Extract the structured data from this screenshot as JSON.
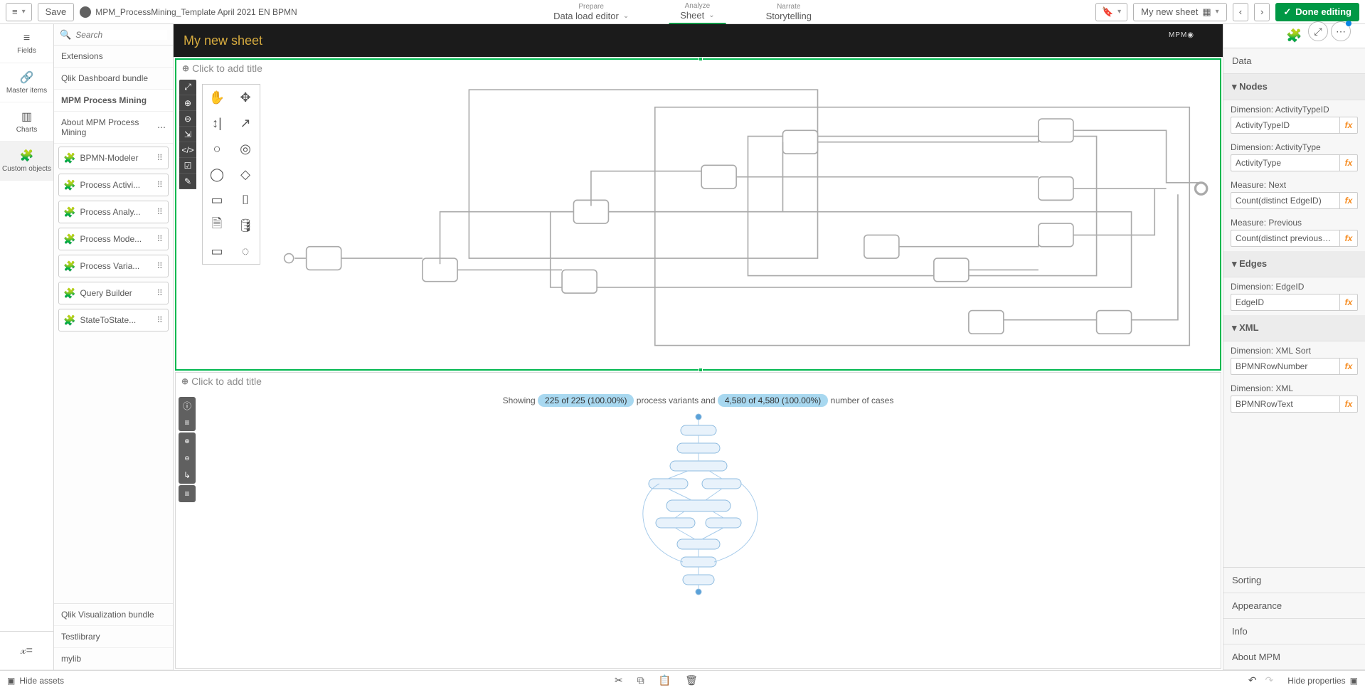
{
  "topbar": {
    "save_label": "Save",
    "app_title": "MPM_ProcessMining_Template April 2021 EN BPMN",
    "modes": [
      {
        "super": "Prepare",
        "name": "Data load editor",
        "dropdown": true
      },
      {
        "super": "Analyze",
        "name": "Sheet",
        "dropdown": true,
        "active": true
      },
      {
        "super": "Narrate",
        "name": "Storytelling",
        "dropdown": false
      }
    ],
    "sheet_selector_label": "My new sheet",
    "done_label": "Done editing"
  },
  "rail": [
    {
      "icon": "≡",
      "label": "Fields"
    },
    {
      "icon": "🔗",
      "label": "Master items"
    },
    {
      "icon": "▥",
      "label": "Charts"
    },
    {
      "icon": "🧩",
      "label": "Custom objects",
      "active": true
    }
  ],
  "assets": {
    "search_placeholder": "Search",
    "sections_top": [
      "Extensions",
      "Qlik Dashboard bundle"
    ],
    "active_section": "MPM Process Mining",
    "subtitle": "About MPM Process Mining",
    "items": [
      "BPMN-Modeler",
      "Process Activi...",
      "Process Analy...",
      "Process Mode...",
      "Process Varia...",
      "Query Builder",
      "StateToState..."
    ],
    "sections_bottom": [
      "Qlik Visualization bundle",
      "Testlibrary",
      "mylib"
    ]
  },
  "sheet": {
    "title": "My new sheet",
    "placeholder_title": "Click to add title"
  },
  "bpmn_palette": {
    "side_tools": [
      "⤢",
      "⊕",
      "⊖",
      "⇲",
      "</>",
      "☑",
      "✎"
    ],
    "shapes": [
      "✋",
      "✥",
      "↕|",
      "↗",
      "○",
      "◎",
      "◯",
      "◇",
      "▭",
      "⌷",
      "🗎",
      "🛢",
      "▭",
      "◌"
    ]
  },
  "pv": {
    "showing_prefix": "Showing",
    "variants_stat": "225 of 225 (100.00%)",
    "variants_suffix": "process variants and",
    "cases_stat": "4,580 of 4,580 (100.00%)",
    "cases_suffix": "number of cases"
  },
  "props": {
    "tabs": [
      {
        "label": "Data",
        "open": true
      },
      {
        "label": "Sorting"
      },
      {
        "label": "Appearance"
      },
      {
        "label": "Info"
      },
      {
        "label": "About MPM"
      }
    ],
    "groups": [
      {
        "name": "Nodes",
        "fields": [
          {
            "label": "Dimension: ActivityTypeID",
            "value": "ActivityTypeID"
          },
          {
            "label": "Dimension: ActivityType",
            "value": "ActivityType"
          },
          {
            "label": "Measure: Next",
            "value": "Count(distinct EdgeID)"
          },
          {
            "label": "Measure: Previous",
            "value": "Count(distinct previousActivityT"
          }
        ]
      },
      {
        "name": "Edges",
        "fields": [
          {
            "label": "Dimension: EdgeID",
            "value": "EdgeID"
          }
        ]
      },
      {
        "name": "XML",
        "fields": [
          {
            "label": "Dimension: XML Sort",
            "value": "BPMNRowNumber"
          },
          {
            "label": "Dimension: XML",
            "value": "BPMNRowText"
          }
        ]
      }
    ]
  },
  "statusbar": {
    "hide_assets": "Hide assets",
    "hide_props": "Hide properties"
  },
  "bpmn_diagram_svg": "<svg viewBox='0 0 800 280' xmlns='http://www.w3.org/2000/svg'><g stroke='#aaa' fill='none' stroke-width='1'><rect x='160' y='5' width='300' height='145'/><rect x='320' y='20' width='460' height='205'/><rect x='230' y='110' width='500' height='65'/><rect x='400' y='45' width='300' height='120'/><rect x='20' y='140' width='30' height='20' rx='3' fill='#fff'/><rect x='120' y='150' width='30' height='20' rx='3' fill='#fff'/><rect x='250' y='100' width='30' height='20' rx='3' fill='#fff'/><rect x='240' y='160' width='30' height='20' rx='3' fill='#fff'/><rect x='360' y='70' width='30' height='20' rx='3' fill='#fff'/><rect x='430' y='40' width='30' height='20' rx='3' fill='#fff'/><rect x='500' y='130' width='30' height='20' rx='3' fill='#fff'/><rect x='560' y='150' width='30' height='20' rx='3' fill='#fff'/><rect x='590' y='195' width='30' height='20' rx='3' fill='#fff'/><rect x='650' y='30' width='30' height='20' rx='3' fill='#fff'/><rect x='650' y='80' width='30' height='20' rx='3' fill='#fff'/><rect x='650' y='120' width='30' height='20' rx='3' fill='#fff'/><rect x='700' y='195' width='30' height='20' rx='3' fill='#fff'/><circle cx='5' cy='150' r='4'/><circle cx='790' cy='90' r='5' stroke-width='2'/><path d='M10 150 H20 M50 150 H120 M150 160 H240 M135 155 V110 H250 M280 110 H430 V50 M265 105 V75 H360 M390 80 H650 M460 50 H650 V40 M530 140 H650 V130 M590 160 H650 M620 203 H700 M680 40 H760 V85 H790 M680 90 H760 M680 130 H750 V90 M730 203 H770 V95'/></g></svg>",
  "pv_diagram_svg": "<svg viewBox='0 0 200 260' xmlns='http://www.w3.org/2000/svg'><g stroke='#8fbce0' fill='#e8f2fb' stroke-width='1'><circle cx='100' cy='8' r='4' fill='#5aa1d8'/><rect x='75' y='20' width='50' height='14' rx='7'/><rect x='70' y='45' width='60' height='14' rx='7'/><rect x='60' y='70' width='80' height='14' rx='7'/><rect x='30' y='95' width='55' height='14' rx='7'/><rect x='105' y='95' width='55' height='14' rx='7'/><rect x='55' y='125' width='90' height='16' rx='8'/><rect x='40' y='150' width='55' height='14' rx='7'/><rect x='110' y='150' width='50' height='14' rx='7'/><rect x='70' y='180' width='60' height='14' rx='7'/><rect x='75' y='205' width='50' height='14' rx='7'/><rect x='78' y='230' width='44' height='14' rx='7'/><circle cx='100' cy='254' r='4' fill='#5aa1d8'/><g stroke='#a8cceb' fill='none'><path d='M100 12 V20 M100 34 V45 M100 59 V70 M85 84 L57 95 M115 84 L133 95 M57 109 L90 125 M133 109 L110 125 M80 141 L67 150 M120 141 L135 150 M67 164 L95 180 M135 164 L105 180 M100 194 V205 M100 219 V230 M100 244 V250'/><path d='M45 102 C 10 120 10 190 78 212' /><path d='M160 102 C 195 130 195 190 122 212'/></g></g></svg>"
}
